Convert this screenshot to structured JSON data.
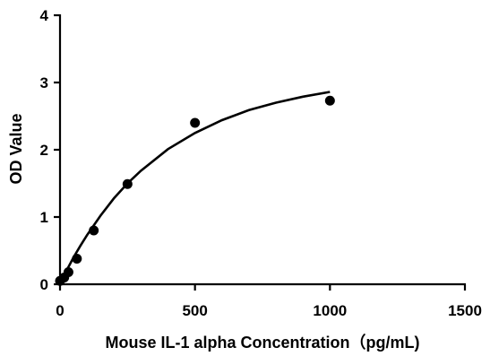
{
  "chart_data": {
    "type": "scatter",
    "title": "",
    "xlabel": "Mouse IL-1 alpha Concentration（pg/mL)",
    "ylabel": "OD Value",
    "xlim": [
      0,
      1500
    ],
    "ylim": [
      0,
      4
    ],
    "x_ticks": [
      0,
      500,
      1000,
      1500
    ],
    "y_ticks": [
      0,
      1,
      2,
      3,
      4
    ],
    "x_tick_labels": [
      "0",
      "500",
      "1000",
      "1500"
    ],
    "y_tick_labels": [
      "0",
      "1",
      "2",
      "3",
      "4"
    ],
    "grid": false,
    "legend": "none",
    "series": [
      {
        "points": [
          {
            "x": 0,
            "y": 0.05
          },
          {
            "x": 15.6,
            "y": 0.1
          },
          {
            "x": 31.25,
            "y": 0.18
          },
          {
            "x": 62.5,
            "y": 0.38
          },
          {
            "x": 125,
            "y": 0.8
          },
          {
            "x": 250,
            "y": 1.49
          },
          {
            "x": 500,
            "y": 2.4
          },
          {
            "x": 1000,
            "y": 2.73
          }
        ],
        "fit_curve": {
          "x": [
            0,
            25,
            50,
            75,
            100,
            150,
            200,
            250,
            300,
            400,
            500,
            600,
            700,
            800,
            900,
            1000
          ],
          "y": [
            0.02,
            0.21,
            0.4,
            0.57,
            0.73,
            1.02,
            1.28,
            1.5,
            1.69,
            2.01,
            2.25,
            2.44,
            2.59,
            2.7,
            2.79,
            2.86
          ]
        },
        "marker_color": "#000000",
        "line_color": "#000000"
      }
    ]
  }
}
